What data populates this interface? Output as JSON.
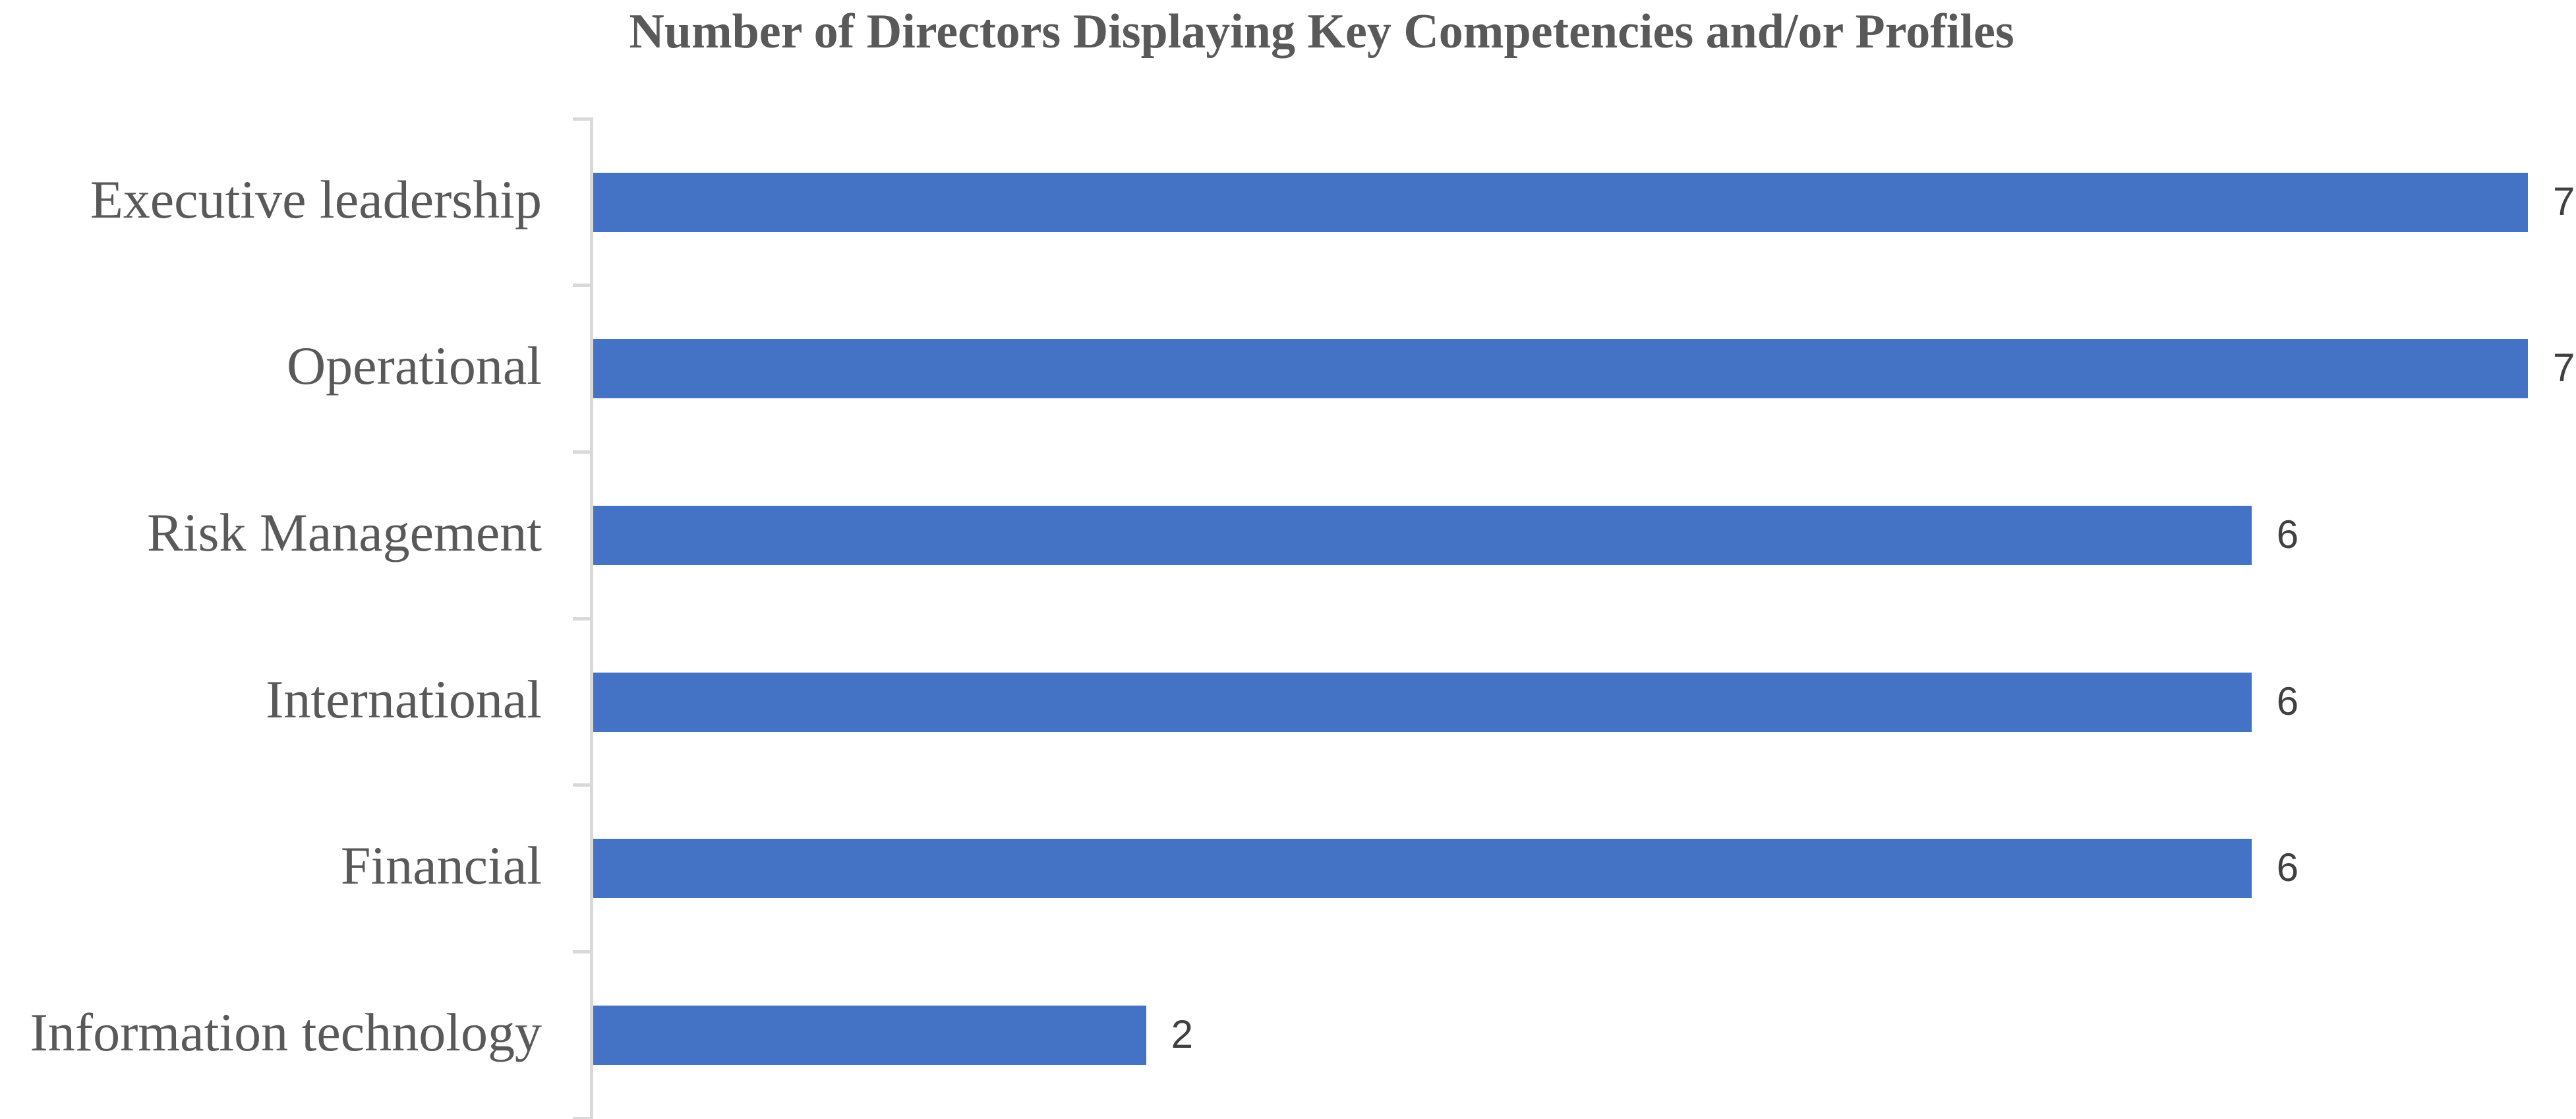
{
  "chart_data": {
    "type": "bar",
    "orientation": "horizontal",
    "title": "Number of Directors Displaying Key Competencies and/or Profiles",
    "categories": [
      "Executive leadership",
      "Operational",
      "Risk Management",
      "International",
      "Financial",
      "Information technology"
    ],
    "values": [
      7,
      7,
      6,
      6,
      6,
      2
    ],
    "data_labels": [
      "7",
      "7",
      "6",
      "6",
      "6",
      "2"
    ],
    "xlabel": "",
    "ylabel": "",
    "xlim": [
      0,
      7
    ],
    "grid": false,
    "legend": false,
    "axis_ticks": "outside",
    "colors": {
      "bar": "#4472C4",
      "title_text": "#595959",
      "category_text": "#595959",
      "data_label_text": "#404040",
      "axis_line": "#D9D9D9",
      "background": "#FFFFFF"
    }
  }
}
